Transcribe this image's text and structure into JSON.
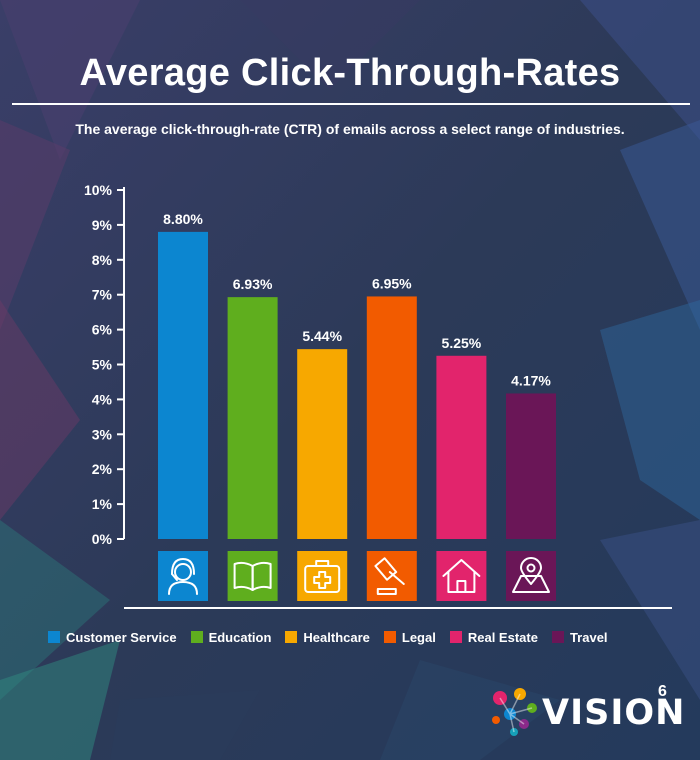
{
  "header": {
    "title": "Average Click-Through-Rates",
    "subtitle": "The average click-through-rate (CTR) of emails across a select range of industries."
  },
  "chart_data": {
    "type": "bar",
    "title": "Average Click-Through-Rates",
    "subtitle": "The average click-through-rate (CTR) of emails across a select range of industries.",
    "categories": [
      "Customer Service",
      "Education",
      "Healthcare",
      "Legal",
      "Real Estate",
      "Travel"
    ],
    "values": [
      8.8,
      6.93,
      5.44,
      6.95,
      5.25,
      4.17
    ],
    "data_labels": [
      "8.80%",
      "6.93%",
      "5.44%",
      "6.95%",
      "5.25%",
      "4.17%"
    ],
    "colors": [
      "#0c86d0",
      "#5fae1e",
      "#f7a800",
      "#f25b00",
      "#e2246c",
      "#6a1657"
    ],
    "icons": [
      "headset-icon",
      "book-icon",
      "medical-kit-icon",
      "gavel-icon",
      "house-icon",
      "map-pin-icon"
    ],
    "y_ticks": [
      "0%",
      "1%",
      "2%",
      "3%",
      "4%",
      "5%",
      "6%",
      "7%",
      "8%",
      "9%",
      "10%"
    ],
    "ylim": [
      0,
      10
    ],
    "xlabel": "",
    "ylabel": "",
    "grid": false,
    "legend": "bottom"
  },
  "legend": {
    "items": [
      "Customer Service",
      "Education",
      "Healthcare",
      "Legal",
      "Real Estate",
      "Travel"
    ]
  },
  "logo": {
    "text": "VISION",
    "superscript": "6"
  },
  "colors": {
    "background": "#2e3b5c",
    "text": "#ffffff"
  }
}
